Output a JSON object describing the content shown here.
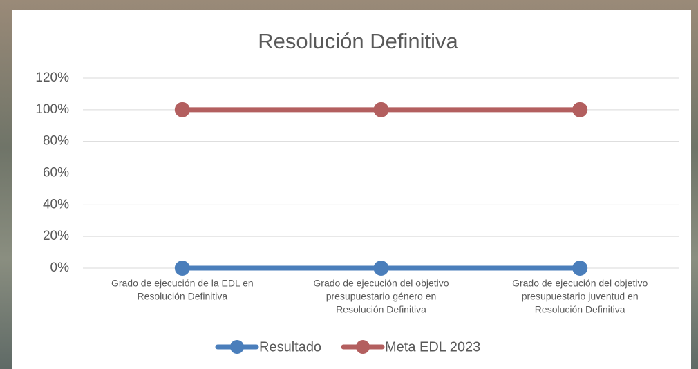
{
  "chart_data": {
    "type": "line",
    "title": "Resolución Definitiva",
    "categories": [
      [
        "Grado de ejecución de la EDL en",
        "Resolución Definitiva"
      ],
      [
        "Grado de ejecución del objetivo",
        "presupuestario género en",
        "Resolución Definitiva"
      ],
      [
        "Grado de ejecución del objetivo",
        "presupuestario juventud en",
        "Resolución Definitiva"
      ]
    ],
    "series": [
      {
        "name": "Resultado",
        "color": "#4a7ebb",
        "values": [
          0,
          0,
          0
        ]
      },
      {
        "name": "Meta EDL 2023",
        "color": "#b35f5f",
        "values": [
          100,
          100,
          100
        ]
      }
    ],
    "ylim": [
      0,
      120
    ],
    "yticks": [
      {
        "value": 0,
        "label": "0%"
      },
      {
        "value": 20,
        "label": "20%"
      },
      {
        "value": 40,
        "label": "40%"
      },
      {
        "value": 60,
        "label": "60%"
      },
      {
        "value": 80,
        "label": "80%"
      },
      {
        "value": 100,
        "label": "100%"
      },
      {
        "value": 120,
        "label": "120%"
      }
    ],
    "grid": true,
    "legend": "bottom"
  }
}
